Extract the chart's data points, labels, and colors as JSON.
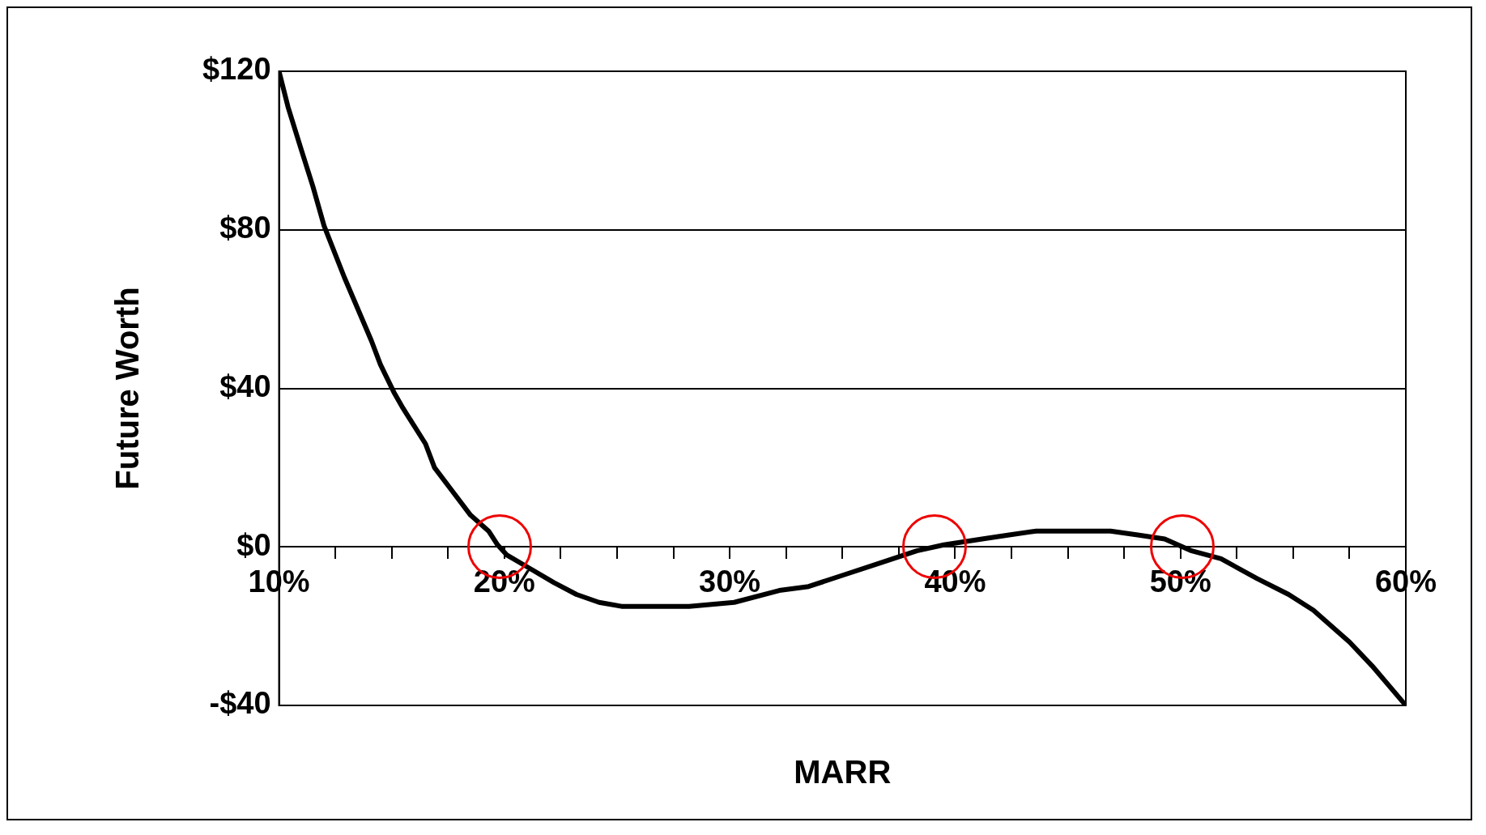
{
  "chart_data": {
    "type": "line",
    "xlabel": "MARR",
    "ylabel": "Future Worth",
    "x": [
      10,
      10.4,
      11,
      11.5,
      12,
      12.9,
      14.1,
      14.5,
      15.1,
      15.5,
      16.5,
      16.9,
      17.7,
      18.5,
      19.3,
      19.7,
      20.1,
      21,
      22.2,
      23.2,
      24.2,
      25.2,
      25.8,
      28.2,
      30.2,
      32.2,
      33.5,
      35.1,
      36.7,
      38.3,
      39.5,
      41.2,
      42.4,
      43.6,
      46.9,
      48.1,
      49.3,
      50.5,
      51.8,
      53.4,
      54.8,
      55.9,
      57.5,
      58.5,
      60
    ],
    "series": [
      {
        "color": "#000000",
        "values": [
          120,
          111,
          100,
          91,
          81,
          68,
          52,
          46,
          39,
          35,
          26,
          20,
          14,
          8,
          4,
          0.5,
          -2,
          -5,
          -9,
          -12,
          -14,
          -15,
          -15,
          -15,
          -14,
          -11,
          -10,
          -7,
          -4,
          -1,
          0.5,
          2,
          3,
          4,
          4,
          3,
          2,
          -1,
          -3,
          -8,
          -12,
          -16,
          -24,
          -30,
          -40
        ]
      }
    ],
    "xlim": [
      10,
      60
    ],
    "xticks": [
      {
        "value": 10,
        "label": "10%"
      },
      {
        "value": 12.5,
        "label": null
      },
      {
        "value": 15,
        "label": null
      },
      {
        "value": 17.5,
        "label": null
      },
      {
        "value": 20,
        "label": "20%"
      },
      {
        "value": 22.5,
        "label": null
      },
      {
        "value": 25,
        "label": null
      },
      {
        "value": 27.5,
        "label": null
      },
      {
        "value": 30,
        "label": "30%"
      },
      {
        "value": 32.5,
        "label": null
      },
      {
        "value": 35,
        "label": null
      },
      {
        "value": 37.5,
        "label": null
      },
      {
        "value": 40,
        "label": "40%"
      },
      {
        "value": 42.5,
        "label": null
      },
      {
        "value": 45,
        "label": null
      },
      {
        "value": 47.5,
        "label": null
      },
      {
        "value": 50,
        "label": "50%"
      },
      {
        "value": 52.5,
        "label": null
      },
      {
        "value": 55,
        "label": null
      },
      {
        "value": 57.5,
        "label": null
      },
      {
        "value": 60,
        "label": "60%"
      }
    ],
    "ylim": [
      -40,
      120
    ],
    "yticks": [
      {
        "value": -40,
        "label": "-$40"
      },
      {
        "value": 0,
        "label": "$0"
      },
      {
        "value": 40,
        "label": "$40"
      },
      {
        "value": 80,
        "label": "$80"
      },
      {
        "value": 120,
        "label": "$120"
      }
    ],
    "grid": "y",
    "legend": false,
    "marker": "none",
    "line_style": "solid"
  }
}
